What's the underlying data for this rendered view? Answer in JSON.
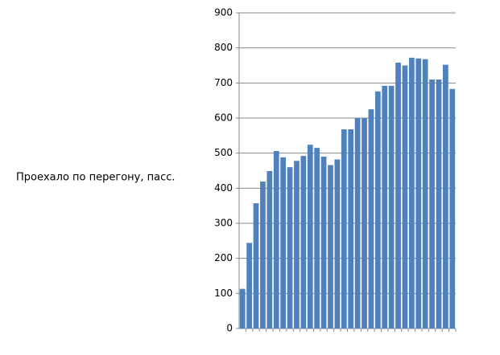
{
  "chart_data": {
    "type": "bar",
    "y_label": "Проехало по перегону, пасс.",
    "categories": [
      null,
      null,
      null,
      null,
      null,
      null,
      null,
      null,
      null,
      null,
      null,
      null,
      null,
      null,
      null,
      null,
      null,
      null,
      null,
      null,
      null,
      null,
      null,
      null,
      null,
      null,
      null,
      null,
      null,
      null,
      null,
      null
    ],
    "values": [
      113,
      244,
      357,
      419,
      449,
      506,
      488,
      460,
      478,
      492,
      524,
      515,
      490,
      466,
      482,
      568,
      568,
      600,
      600,
      625,
      676,
      692,
      692,
      758,
      750,
      772,
      770,
      768,
      710,
      710,
      752,
      683
    ],
    "color": "#4f81bd",
    "ylim": [
      0,
      900
    ],
    "yticks": [
      0,
      100,
      200,
      300,
      400,
      500,
      600,
      700,
      800,
      900
    ],
    "grid": true
  }
}
